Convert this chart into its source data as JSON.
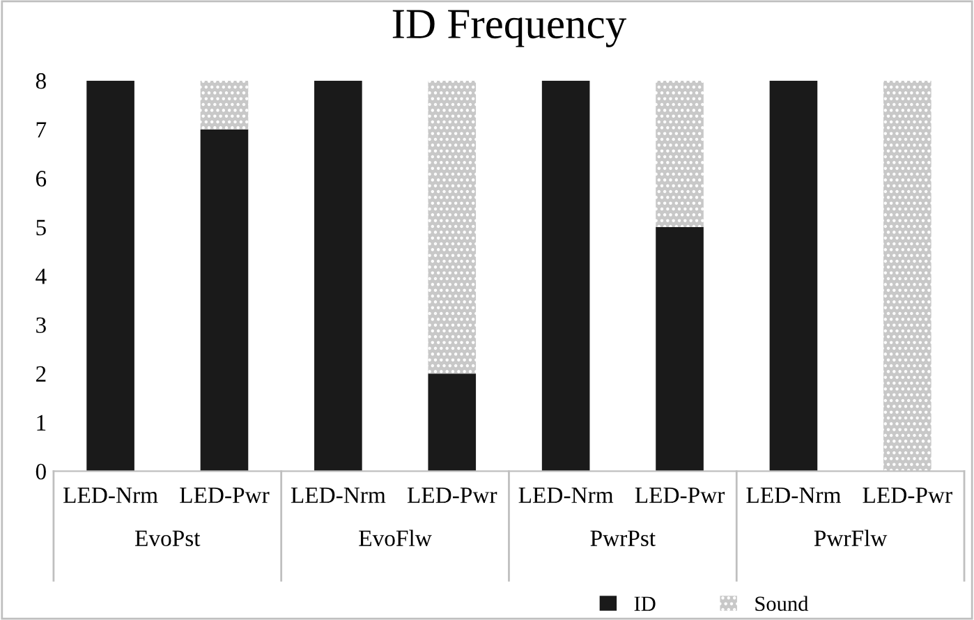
{
  "chart_data": {
    "type": "bar",
    "title": "ID Frequency",
    "stacked": true,
    "categories": [
      "LED-Nrm",
      "LED-Pwr",
      "LED-Nrm",
      "LED-Pwr",
      "LED-Nrm",
      "LED-Pwr",
      "LED-Nrm",
      "LED-Pwr"
    ],
    "annotations": [
      "EvoPst",
      "EvoFlw",
      "PwrPst",
      "PwrFlw"
    ],
    "series": [
      {
        "name": "ID",
        "color": "#1a1a1a",
        "values": [
          8,
          7,
          8,
          2,
          8,
          5,
          8,
          0
        ]
      },
      {
        "name": "Sound",
        "color": "#c8c8c8",
        "values": [
          0,
          1,
          0,
          6,
          0,
          3,
          0,
          8
        ]
      }
    ],
    "ylim": [
      0,
      8
    ],
    "yticks": [
      0,
      1,
      2,
      3,
      4,
      5,
      6,
      7,
      8
    ],
    "grid": false,
    "legend": "bottom right"
  }
}
